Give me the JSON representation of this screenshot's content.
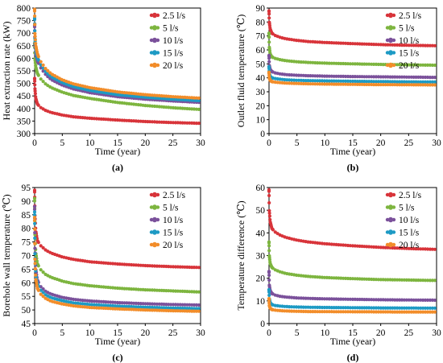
{
  "series_colors": {
    "2.5 l/s": "#d8343a",
    "5 l/s": "#7db53f",
    "10 l/s": "#7b519b",
    "15 l/s": "#1d9ac4",
    "20 l/s": "#f28d2a"
  },
  "chart_data": [
    {
      "type": "scatter",
      "panel_label": "(a)",
      "xlabel": "Time (year)",
      "ylabel": "Heat extraction rate (kW)",
      "xlim": [
        0,
        30
      ],
      "ylim": [
        300,
        800
      ],
      "xticks": [
        0,
        5,
        10,
        15,
        20,
        25,
        30
      ],
      "yticks": [
        300,
        350,
        400,
        450,
        500,
        550,
        600,
        650,
        700,
        750,
        800
      ],
      "legend_position": "top-right",
      "series": [
        {
          "name": "2.5 l/s",
          "x": [
            0,
            0.05,
            0.2,
            0.5,
            1,
            2,
            3,
            5,
            7,
            10,
            15,
            20,
            25,
            30
          ],
          "y": [
            520,
            480,
            440,
            418,
            405,
            392,
            384,
            374,
            367,
            361,
            354,
            348,
            344,
            341
          ]
        },
        {
          "name": "5 l/s",
          "x": [
            0,
            0.05,
            0.2,
            0.5,
            1,
            2,
            3,
            5,
            7,
            10,
            15,
            20,
            25,
            30
          ],
          "y": [
            660,
            600,
            565,
            540,
            520,
            497,
            483,
            465,
            452,
            440,
            424,
            412,
            403,
            396
          ]
        },
        {
          "name": "10 l/s",
          "x": [
            0,
            0.05,
            0.2,
            0.5,
            1,
            2,
            3,
            5,
            7,
            10,
            15,
            20,
            25,
            30
          ],
          "y": [
            730,
            660,
            620,
            590,
            565,
            535,
            515,
            493,
            478,
            463,
            447,
            437,
            430,
            424
          ]
        },
        {
          "name": "15 l/s",
          "x": [
            0,
            0.05,
            0.2,
            0.5,
            1,
            2,
            3,
            5,
            7,
            10,
            15,
            20,
            25,
            30
          ],
          "y": [
            760,
            680,
            635,
            603,
            577,
            546,
            526,
            503,
            487,
            472,
            455,
            445,
            437,
            431
          ]
        },
        {
          "name": "20 l/s",
          "x": [
            0,
            0.05,
            0.2,
            0.5,
            1,
            2,
            3,
            5,
            7,
            10,
            15,
            20,
            25,
            30
          ],
          "y": [
            795,
            700,
            650,
            618,
            590,
            558,
            538,
            514,
            498,
            483,
            466,
            455,
            447,
            441
          ]
        }
      ]
    },
    {
      "type": "scatter",
      "panel_label": "(b)",
      "xlabel": "Time (year)",
      "ylabel": "Outlet fluid temperature (℃)",
      "xlim": [
        0,
        30
      ],
      "ylim": [
        0,
        90
      ],
      "xticks": [
        0,
        5,
        10,
        15,
        20,
        25,
        30
      ],
      "yticks": [
        0,
        10,
        20,
        30,
        40,
        50,
        60,
        70,
        80,
        90
      ],
      "legend_position": "top-right",
      "series": [
        {
          "name": "2.5 l/s",
          "x": [
            0,
            0.05,
            0.2,
            0.5,
            1,
            2,
            3,
            5,
            7,
            10,
            15,
            20,
            25,
            30
          ],
          "y": [
            88,
            80,
            75,
            72,
            70.5,
            69,
            68,
            66.8,
            66,
            65.3,
            64.5,
            63.8,
            63.3,
            63
          ]
        },
        {
          "name": "5 l/s",
          "x": [
            0,
            0.05,
            0.2,
            0.5,
            1,
            2,
            3,
            5,
            7,
            10,
            15,
            20,
            25,
            30
          ],
          "y": [
            72,
            62,
            57,
            55,
            54,
            53,
            52.3,
            51.5,
            51,
            50.5,
            50,
            49.6,
            49.3,
            49
          ]
        },
        {
          "name": "10 l/s",
          "x": [
            0,
            0.05,
            0.2,
            0.5,
            1,
            2,
            3,
            5,
            7,
            10,
            15,
            20,
            25,
            30
          ],
          "y": [
            56,
            49,
            46,
            44.5,
            43.6,
            42.8,
            42.3,
            41.8,
            41.5,
            41.2,
            40.9,
            40.7,
            40.5,
            40.3
          ]
        },
        {
          "name": "15 l/s",
          "x": [
            0,
            0.05,
            0.2,
            0.5,
            1,
            2,
            3,
            5,
            7,
            10,
            15,
            20,
            25,
            30
          ],
          "y": [
            48,
            43,
            41,
            40,
            39.5,
            39,
            38.6,
            38.2,
            38,
            37.8,
            37.5,
            37.3,
            37.1,
            37
          ]
        },
        {
          "name": "20 l/s",
          "x": [
            0,
            0.05,
            0.2,
            0.5,
            1,
            2,
            3,
            5,
            7,
            10,
            15,
            20,
            25,
            30
          ],
          "y": [
            44,
            40,
            38.2,
            37.3,
            36.9,
            36.5,
            36.2,
            35.9,
            35.7,
            35.5,
            35.3,
            35.1,
            35,
            34.9
          ]
        }
      ]
    },
    {
      "type": "scatter",
      "panel_label": "(c)",
      "xlabel": "Time (year)",
      "ylabel": "Borehole wall temperature (℃)",
      "xlim": [
        0,
        30
      ],
      "ylim": [
        45,
        95
      ],
      "xticks": [
        0,
        5,
        10,
        15,
        20,
        25,
        30
      ],
      "yticks": [
        45,
        50,
        55,
        60,
        65,
        70,
        75,
        80,
        85,
        90,
        95
      ],
      "legend_position": "top-right",
      "series": [
        {
          "name": "2.5 l/s",
          "x": [
            0,
            0.05,
            0.2,
            0.5,
            1,
            2,
            3,
            5,
            7,
            10,
            15,
            20,
            25,
            30
          ],
          "y": [
            94,
            85,
            79,
            75.5,
            73.8,
            72,
            70.9,
            69.5,
            68.6,
            67.7,
            66.9,
            66.3,
            65.9,
            65.6
          ]
        },
        {
          "name": "5 l/s",
          "x": [
            0,
            0.05,
            0.2,
            0.5,
            1,
            2,
            3,
            5,
            7,
            10,
            15,
            20,
            25,
            30
          ],
          "y": [
            91,
            78,
            71,
            67,
            65,
            63,
            62,
            60.6,
            59.7,
            58.9,
            58,
            57.4,
            57,
            56.6
          ]
        },
        {
          "name": "10 l/s",
          "x": [
            0,
            0.05,
            0.2,
            0.5,
            1,
            2,
            3,
            5,
            7,
            10,
            15,
            20,
            25,
            30
          ],
          "y": [
            88,
            73,
            65,
            61,
            58.8,
            56.8,
            55.8,
            54.6,
            53.9,
            53.3,
            52.7,
            52.3,
            52,
            51.8
          ]
        },
        {
          "name": "15 l/s",
          "x": [
            0,
            0.05,
            0.2,
            0.5,
            1,
            2,
            3,
            5,
            7,
            10,
            15,
            20,
            25,
            30
          ],
          "y": [
            86,
            71,
            63,
            59.5,
            57.5,
            55.5,
            54.5,
            53.4,
            52.6,
            52,
            51.4,
            51,
            50.7,
            50.5
          ]
        },
        {
          "name": "20 l/s",
          "x": [
            0,
            0.05,
            0.2,
            0.5,
            1,
            2,
            3,
            5,
            7,
            10,
            15,
            20,
            25,
            30
          ],
          "y": [
            84,
            69,
            61.5,
            58,
            56,
            54.2,
            53.2,
            52.2,
            51.5,
            50.9,
            50.4,
            50,
            49.7,
            49.5
          ]
        }
      ]
    },
    {
      "type": "scatter",
      "panel_label": "(d)",
      "xlabel": "Time (year)",
      "ylabel": "Temperature difference (℃)",
      "xlim": [
        0,
        30
      ],
      "ylim": [
        0,
        60
      ],
      "xticks": [
        0,
        5,
        10,
        15,
        20,
        25,
        30
      ],
      "yticks": [
        0,
        10,
        20,
        30,
        40,
        50,
        60
      ],
      "legend_position": "top-right",
      "series": [
        {
          "name": "2.5 l/s",
          "x": [
            0,
            0.05,
            0.2,
            0.5,
            1,
            2,
            3,
            5,
            7,
            10,
            15,
            20,
            25,
            30
          ],
          "y": [
            59,
            50,
            45,
            42,
            40.5,
            39,
            38,
            36.8,
            36,
            35.2,
            34.3,
            33.6,
            33.1,
            32.7
          ]
        },
        {
          "name": "5 l/s",
          "x": [
            0,
            0.05,
            0.2,
            0.5,
            1,
            2,
            3,
            5,
            7,
            10,
            15,
            20,
            25,
            30
          ],
          "y": [
            36,
            30,
            26.5,
            24.8,
            23.8,
            22.8,
            22.1,
            21.3,
            20.8,
            20.3,
            19.8,
            19.4,
            19.2,
            19
          ]
        },
        {
          "name": "10 l/s",
          "x": [
            0,
            0.05,
            0.2,
            0.5,
            1,
            2,
            3,
            5,
            7,
            10,
            15,
            20,
            25,
            30
          ],
          "y": [
            23,
            17,
            14.5,
            13.3,
            12.6,
            12,
            11.7,
            11.3,
            11.1,
            10.9,
            10.7,
            10.5,
            10.4,
            10.3
          ]
        },
        {
          "name": "15 l/s",
          "x": [
            0,
            0.05,
            0.2,
            0.5,
            1,
            2,
            3,
            5,
            7,
            10,
            15,
            20,
            25,
            30
          ],
          "y": [
            15,
            11,
            9.2,
            8.4,
            8,
            7.7,
            7.5,
            7.3,
            7.2,
            7.1,
            7,
            6.9,
            6.85,
            6.8
          ]
        },
        {
          "name": "20 l/s",
          "x": [
            0,
            0.05,
            0.2,
            0.5,
            1,
            2,
            3,
            5,
            7,
            10,
            15,
            20,
            25,
            30
          ],
          "y": [
            11,
            8,
            6.8,
            6.2,
            5.9,
            5.7,
            5.55,
            5.4,
            5.3,
            5.25,
            5.2,
            5.15,
            5.1,
            5.1
          ]
        }
      ]
    }
  ]
}
